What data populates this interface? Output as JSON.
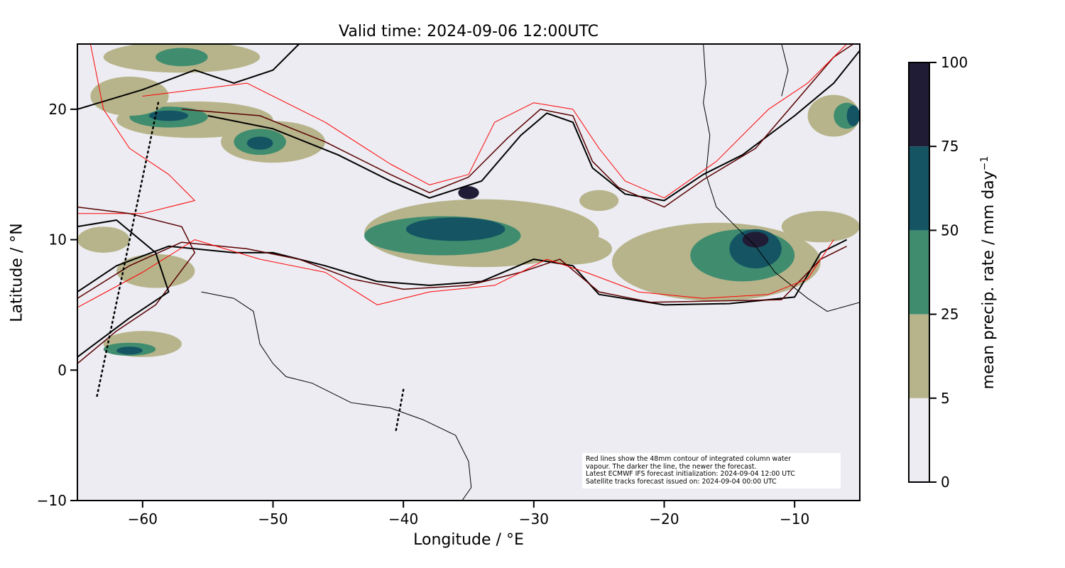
{
  "chart_data": {
    "type": "heatmap",
    "title": "Valid time: 2024-09-06 12:00UTC",
    "xlabel": "Longitude / °E",
    "ylabel": "Latitude / °N",
    "xlim": [
      -65,
      -5
    ],
    "ylim": [
      -10,
      25
    ],
    "xticks": [
      -60,
      -50,
      -40,
      -30,
      -20,
      -10
    ],
    "xtick_labels": [
      "−60",
      "−50",
      "−40",
      "−30",
      "−20",
      "−10"
    ],
    "yticks": [
      -10,
      0,
      10,
      20
    ],
    "ytick_labels": [
      "−10",
      "0",
      "10",
      "20"
    ],
    "background_color": "#ececf2",
    "colorbar": {
      "label": "mean precip. rate / mm day",
      "label_superscript": "−1",
      "levels": [
        0,
        5,
        25,
        50,
        75,
        100
      ],
      "level_labels": [
        "0",
        "5",
        "25",
        "50",
        "75",
        "100"
      ],
      "colors": [
        "#ececf2",
        "#b7b48b",
        "#3f8c6f",
        "#155463",
        "#211c36"
      ]
    },
    "precip_regions": [
      [
        -34,
        10.5,
        9,
        2.6,
        1
      ],
      [
        -37,
        10.3,
        6,
        1.5,
        2
      ],
      [
        -36,
        10.8,
        3.8,
        0.9,
        3
      ],
      [
        -35,
        13.6,
        0.8,
        0.5,
        4
      ],
      [
        -16,
        8.3,
        8,
        3.0,
        1
      ],
      [
        -27,
        9.3,
        3,
        1.2,
        1
      ],
      [
        -14,
        8.8,
        4,
        2.0,
        2
      ],
      [
        -13,
        9.3,
        2,
        1.5,
        3
      ],
      [
        -13,
        10,
        1,
        0.6,
        4
      ],
      [
        -56,
        19.2,
        6,
        1.4,
        1
      ],
      [
        -58,
        19.4,
        3,
        0.8,
        2
      ],
      [
        -58,
        19.5,
        1.5,
        0.4,
        3
      ],
      [
        -50,
        17.5,
        4,
        1.6,
        1
      ],
      [
        -51,
        17.5,
        2,
        1.0,
        2
      ],
      [
        -51,
        17.4,
        1,
        0.5,
        3
      ],
      [
        -57,
        24,
        6,
        1.2,
        1
      ],
      [
        -57,
        24,
        2,
        0.7,
        2
      ],
      [
        -61,
        21,
        3,
        1.5,
        1
      ],
      [
        -59,
        7.6,
        3,
        1.3,
        1
      ],
      [
        -63,
        10,
        2,
        1.0,
        1
      ],
      [
        -60,
        2,
        3,
        1.0,
        1
      ],
      [
        -61,
        1.6,
        2,
        0.5,
        2
      ],
      [
        -61,
        1.5,
        1,
        0.3,
        3
      ],
      [
        -7,
        19.5,
        2,
        1.6,
        1
      ],
      [
        -6,
        19.5,
        1,
        1.0,
        2
      ],
      [
        -5.5,
        19.5,
        0.5,
        0.8,
        3
      ],
      [
        -8,
        11,
        3,
        1.2,
        1
      ],
      [
        -25,
        13,
        1.5,
        0.8,
        1
      ]
    ],
    "iwv_contours": [
      {
        "color": "#000000",
        "width": 2,
        "points": [
          [
            -55,
            19.5
          ],
          [
            -50,
            18.5
          ],
          [
            -45,
            16.5
          ],
          [
            -41,
            14.5
          ],
          [
            -38,
            13.2
          ],
          [
            -34,
            14.5
          ],
          [
            -31,
            18
          ],
          [
            -29,
            19.7
          ],
          [
            -27,
            19
          ],
          [
            -25.5,
            15.5
          ],
          [
            -23,
            13.5
          ],
          [
            -20,
            13
          ],
          [
            -17,
            15
          ],
          [
            -14,
            16.5
          ],
          [
            -10,
            19.5
          ],
          [
            -7,
            22
          ],
          [
            -5,
            24.5
          ]
        ]
      },
      {
        "color": "#5a0000",
        "width": 1.5,
        "points": [
          [
            -57,
            20
          ],
          [
            -51,
            19.5
          ],
          [
            -46,
            17.5
          ],
          [
            -41,
            15
          ],
          [
            -38,
            13.6
          ],
          [
            -35,
            14.8
          ],
          [
            -32,
            17.8
          ],
          [
            -29.5,
            20
          ],
          [
            -27,
            19.5
          ],
          [
            -25.5,
            16
          ],
          [
            -23.5,
            14
          ],
          [
            -20,
            12.5
          ],
          [
            -17,
            14.6
          ],
          [
            -13,
            17
          ],
          [
            -10,
            20.5
          ],
          [
            -7,
            24
          ],
          [
            -5.5,
            25
          ]
        ]
      },
      {
        "color": "#ff0000",
        "width": 1,
        "points": [
          [
            -60,
            21
          ],
          [
            -52,
            22
          ],
          [
            -46,
            19
          ],
          [
            -41,
            15.8
          ],
          [
            -38,
            14.2
          ],
          [
            -35,
            15
          ],
          [
            -33,
            19
          ],
          [
            -30,
            20.5
          ],
          [
            -27,
            20
          ],
          [
            -25,
            17
          ],
          [
            -23,
            14.5
          ],
          [
            -20,
            13.2
          ],
          [
            -16,
            16
          ],
          [
            -12,
            20
          ],
          [
            -9,
            22
          ],
          [
            -6,
            25
          ]
        ]
      },
      {
        "color": "#000000",
        "width": 2,
        "points": [
          [
            -65,
            6
          ],
          [
            -62,
            8
          ],
          [
            -58,
            9.5
          ],
          [
            -53,
            9
          ],
          [
            -50,
            9
          ],
          [
            -46,
            8
          ],
          [
            -42,
            6.8
          ],
          [
            -38,
            6.5
          ],
          [
            -34,
            6.8
          ],
          [
            -30,
            8.5
          ],
          [
            -27,
            8
          ],
          [
            -25,
            5.8
          ],
          [
            -20,
            5
          ],
          [
            -15,
            5.1
          ],
          [
            -10,
            5.6
          ],
          [
            -8,
            9
          ],
          [
            -6,
            10
          ]
        ]
      },
      {
        "color": "#5a0000",
        "width": 1.5,
        "points": [
          [
            -65,
            5.5
          ],
          [
            -61,
            8
          ],
          [
            -57,
            9.8
          ],
          [
            -52,
            9.3
          ],
          [
            -48,
            8.5
          ],
          [
            -44,
            7
          ],
          [
            -40,
            6.2
          ],
          [
            -35,
            6.5
          ],
          [
            -31,
            7.5
          ],
          [
            -28,
            8.5
          ],
          [
            -25,
            6
          ],
          [
            -21,
            5.2
          ],
          [
            -16,
            5.3
          ],
          [
            -11,
            5.4
          ],
          [
            -8,
            8.5
          ],
          [
            -6,
            9.5
          ]
        ]
      },
      {
        "color": "#ff0000",
        "width": 1,
        "points": [
          [
            -65,
            4.8
          ],
          [
            -60,
            7.5
          ],
          [
            -56,
            10
          ],
          [
            -51,
            8.5
          ],
          [
            -46,
            7.5
          ],
          [
            -42,
            5
          ],
          [
            -38,
            6
          ],
          [
            -33,
            6.5
          ],
          [
            -29,
            8.5
          ],
          [
            -26,
            7.5
          ],
          [
            -22,
            6
          ],
          [
            -17,
            5.5
          ],
          [
            -12,
            5.8
          ],
          [
            -9,
            7
          ],
          [
            -7,
            10
          ]
        ]
      },
      {
        "color": "#000000",
        "width": 2,
        "points": [
          [
            -65,
            20
          ],
          [
            -60,
            21.5
          ],
          [
            -56,
            23
          ],
          [
            -53,
            22
          ],
          [
            -50,
            23
          ],
          [
            -48,
            25
          ]
        ]
      },
      {
        "color": "#ff0000",
        "width": 1,
        "points": [
          [
            -64,
            25
          ],
          [
            -63,
            20
          ],
          [
            -61,
            17
          ],
          [
            -58,
            15
          ],
          [
            -56,
            13
          ],
          [
            -60,
            12
          ],
          [
            -65,
            12
          ]
        ]
      },
      {
        "color": "#5a0000",
        "width": 1.5,
        "points": [
          [
            -65,
            12.5
          ],
          [
            -61,
            12
          ],
          [
            -57,
            11
          ],
          [
            -56,
            9
          ],
          [
            -59,
            5
          ],
          [
            -62,
            3
          ],
          [
            -65,
            0.5
          ]
        ]
      },
      {
        "color": "#000000",
        "width": 2,
        "points": [
          [
            -65,
            11
          ],
          [
            -62,
            11.5
          ],
          [
            -59,
            9
          ],
          [
            -58,
            6
          ],
          [
            -61,
            4
          ],
          [
            -65,
            1
          ]
        ]
      }
    ],
    "coastlines": [
      [
        [
          -55.5,
          6
        ],
        [
          -53,
          5.5
        ],
        [
          -51.5,
          4.5
        ],
        [
          -51,
          2
        ],
        [
          -50,
          0.5
        ],
        [
          -49,
          -0.5
        ],
        [
          -47,
          -1
        ],
        [
          -44,
          -2.5
        ],
        [
          -41,
          -2.9
        ],
        [
          -38.5,
          -3.8
        ],
        [
          -36,
          -5
        ],
        [
          -35,
          -7
        ],
        [
          -34.8,
          -9
        ],
        [
          -35.5,
          -10
        ]
      ],
      [
        [
          -17,
          25
        ],
        [
          -16.8,
          22
        ],
        [
          -17,
          20.5
        ],
        [
          -16.5,
          18
        ],
        [
          -16.8,
          15
        ],
        [
          -16,
          12.5
        ],
        [
          -14.5,
          11
        ],
        [
          -13,
          9.5
        ],
        [
          -11.5,
          7.5
        ],
        [
          -9,
          5.5
        ],
        [
          -7.5,
          4.5
        ],
        [
          -5,
          5.2
        ]
      ],
      [
        [
          -11,
          25
        ],
        [
          -10.5,
          23
        ],
        [
          -11,
          21
        ]
      ]
    ],
    "satellite_tracks": [
      [
        [
          -58.8,
          20.5
        ],
        [
          -63.5,
          -2
        ]
      ],
      [
        [
          -40,
          -1.5
        ],
        [
          -40.6,
          -4.8
        ]
      ]
    ],
    "annotation": [
      "Red lines show the 48mm contour of integrated column water",
      "vapour. The darker the line, the newer the forecast.",
      "Latest ECMWF IFS forecast initialization: 2024-09-04 12:00 UTC",
      "Satellite tracks forecast issued on: 2024-09-04 00:00 UTC"
    ]
  }
}
